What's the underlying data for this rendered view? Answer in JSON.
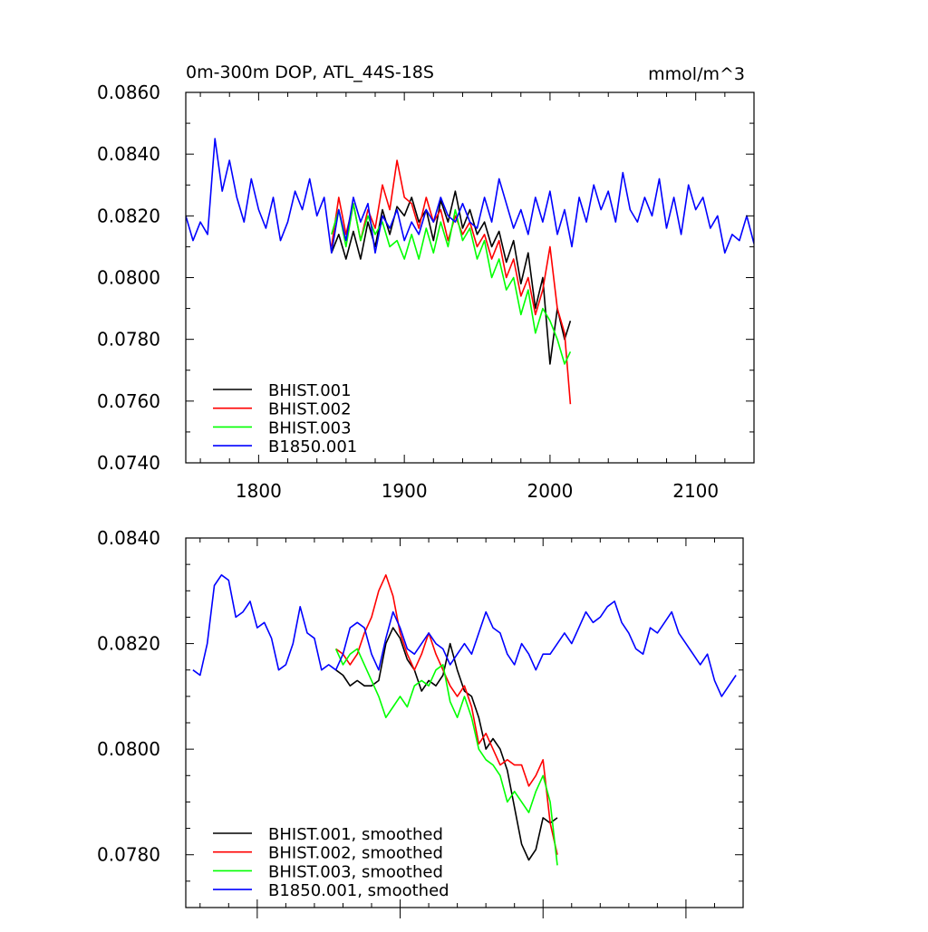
{
  "chart_data": [
    {
      "type": "line",
      "title": "0m-300m DOP, ATL_44S-18S",
      "title_right": "mmol/m^3",
      "xlabel": "",
      "ylabel": "",
      "xlim": [
        1750,
        2140
      ],
      "ylim": [
        0.074,
        0.086
      ],
      "xticks": [
        1800,
        1900,
        2000,
        2100
      ],
      "xtick_labels": [
        "1800",
        "1900",
        "2000",
        "2100"
      ],
      "yticks": [
        0.074,
        0.076,
        0.078,
        0.08,
        0.082,
        0.084,
        0.086
      ],
      "ytick_labels": [
        "0.0740",
        "0.0760",
        "0.0780",
        "0.0800",
        "0.0820",
        "0.0840",
        "0.0860"
      ],
      "grid": false,
      "legend": "bottom-left",
      "series": [
        {
          "name": "BHIST.001",
          "color": "#000000",
          "x": [
            1850,
            1855,
            1860,
            1865,
            1870,
            1875,
            1880,
            1885,
            1890,
            1895,
            1900,
            1905,
            1910,
            1915,
            1920,
            1925,
            1930,
            1935,
            1940,
            1945,
            1950,
            1955,
            1960,
            1965,
            1970,
            1975,
            1980,
            1985,
            1990,
            1995,
            2000,
            2005,
            2010,
            2014
          ],
          "y": [
            0.0808,
            0.0814,
            0.0806,
            0.0815,
            0.0806,
            0.0818,
            0.081,
            0.0822,
            0.0814,
            0.0823,
            0.082,
            0.0826,
            0.0818,
            0.0822,
            0.0812,
            0.0825,
            0.0818,
            0.0828,
            0.0816,
            0.0822,
            0.0814,
            0.0818,
            0.081,
            0.0815,
            0.0805,
            0.0812,
            0.0798,
            0.0808,
            0.079,
            0.08,
            0.0772,
            0.079,
            0.078,
            0.0786
          ]
        },
        {
          "name": "BHIST.002",
          "color": "#ff0000",
          "x": [
            1850,
            1855,
            1860,
            1865,
            1870,
            1875,
            1880,
            1885,
            1890,
            1895,
            1900,
            1905,
            1910,
            1915,
            1920,
            1925,
            1930,
            1935,
            1940,
            1945,
            1950,
            1955,
            1960,
            1965,
            1970,
            1975,
            1980,
            1985,
            1990,
            1995,
            2000,
            2005,
            2010,
            2014
          ],
          "y": [
            0.081,
            0.0826,
            0.0814,
            0.0824,
            0.0812,
            0.0822,
            0.0816,
            0.083,
            0.0822,
            0.0838,
            0.0826,
            0.0824,
            0.0816,
            0.0826,
            0.0818,
            0.0822,
            0.0812,
            0.082,
            0.0814,
            0.0818,
            0.081,
            0.0814,
            0.0806,
            0.0812,
            0.08,
            0.0806,
            0.0794,
            0.08,
            0.0788,
            0.0796,
            0.081,
            0.079,
            0.0782,
            0.0759
          ]
        },
        {
          "name": "BHIST.003",
          "color": "#00ff00",
          "x": [
            1850,
            1855,
            1860,
            1865,
            1870,
            1875,
            1880,
            1885,
            1890,
            1895,
            1900,
            1905,
            1910,
            1915,
            1920,
            1925,
            1930,
            1935,
            1940,
            1945,
            1950,
            1955,
            1960,
            1965,
            1970,
            1975,
            1980,
            1985,
            1990,
            1995,
            2000,
            2005,
            2010,
            2014
          ],
          "y": [
            0.0814,
            0.0822,
            0.081,
            0.0824,
            0.0812,
            0.082,
            0.0814,
            0.0818,
            0.081,
            0.0812,
            0.0806,
            0.0814,
            0.0806,
            0.0816,
            0.0808,
            0.0818,
            0.081,
            0.0822,
            0.0812,
            0.0816,
            0.0806,
            0.0812,
            0.08,
            0.0806,
            0.0796,
            0.08,
            0.0788,
            0.0796,
            0.0782,
            0.079,
            0.0786,
            0.078,
            0.0772,
            0.0776
          ]
        },
        {
          "name": "B1850.001",
          "color": "#0000ff",
          "x": [
            1750,
            1755,
            1760,
            1765,
            1770,
            1775,
            1780,
            1785,
            1790,
            1795,
            1800,
            1805,
            1810,
            1815,
            1820,
            1825,
            1830,
            1835,
            1840,
            1845,
            1850,
            1855,
            1860,
            1865,
            1870,
            1875,
            1880,
            1885,
            1890,
            1895,
            1900,
            1905,
            1910,
            1915,
            1920,
            1925,
            1930,
            1935,
            1940,
            1945,
            1950,
            1955,
            1960,
            1965,
            1970,
            1975,
            1980,
            1985,
            1990,
            1995,
            2000,
            2005,
            2010,
            2015,
            2020,
            2025,
            2030,
            2035,
            2040,
            2045,
            2050,
            2055,
            2060,
            2065,
            2070,
            2075,
            2080,
            2085,
            2090,
            2095,
            2100,
            2105,
            2110,
            2115,
            2120,
            2125,
            2130,
            2135,
            2140
          ],
          "y": [
            0.082,
            0.0812,
            0.0818,
            0.0814,
            0.0845,
            0.0828,
            0.0838,
            0.0826,
            0.0818,
            0.0832,
            0.0822,
            0.0816,
            0.0826,
            0.0812,
            0.0818,
            0.0828,
            0.0822,
            0.0832,
            0.082,
            0.0826,
            0.0808,
            0.0822,
            0.0812,
            0.0826,
            0.0818,
            0.0824,
            0.0808,
            0.082,
            0.0816,
            0.0822,
            0.0812,
            0.0818,
            0.0814,
            0.0822,
            0.0818,
            0.0826,
            0.082,
            0.0818,
            0.0824,
            0.0818,
            0.0816,
            0.0826,
            0.0818,
            0.0832,
            0.0824,
            0.0816,
            0.0822,
            0.0814,
            0.0826,
            0.0818,
            0.0828,
            0.0814,
            0.0822,
            0.081,
            0.0826,
            0.0818,
            0.083,
            0.0822,
            0.0828,
            0.0818,
            0.0834,
            0.0822,
            0.0818,
            0.0826,
            0.082,
            0.0832,
            0.0816,
            0.0826,
            0.0814,
            0.083,
            0.0822,
            0.0826,
            0.0816,
            0.082,
            0.0808,
            0.0814,
            0.0812,
            0.082,
            0.0811
          ]
        }
      ]
    },
    {
      "type": "line",
      "title": "",
      "xlabel": "",
      "ylabel": "",
      "xlim": [
        1750,
        2140
      ],
      "ylim": [
        0.077,
        0.084
      ],
      "xticks": [
        1800,
        1900,
        2000,
        2100
      ],
      "xtick_labels": [],
      "yticks": [
        0.078,
        0.08,
        0.082,
        0.084
      ],
      "ytick_labels": [
        "0.0780",
        "0.0800",
        "0.0820",
        "0.0840"
      ],
      "grid": false,
      "legend": "bottom-left",
      "series": [
        {
          "name": "BHIST.001, smoothed",
          "color": "#000000",
          "x": [
            1855,
            1860,
            1865,
            1870,
            1875,
            1880,
            1885,
            1890,
            1895,
            1900,
            1905,
            1910,
            1915,
            1920,
            1925,
            1930,
            1935,
            1940,
            1945,
            1950,
            1955,
            1960,
            1965,
            1970,
            1975,
            1980,
            1985,
            1990,
            1995,
            2000,
            2005,
            2010
          ],
          "y": [
            0.0815,
            0.0814,
            0.0812,
            0.0813,
            0.0812,
            0.0812,
            0.0813,
            0.082,
            0.0823,
            0.0821,
            0.0817,
            0.0815,
            0.0811,
            0.0813,
            0.0812,
            0.0814,
            0.082,
            0.0815,
            0.0811,
            0.081,
            0.0806,
            0.08,
            0.0802,
            0.08,
            0.0796,
            0.0789,
            0.0782,
            0.0779,
            0.0781,
            0.0787,
            0.0786,
            0.0787
          ]
        },
        {
          "name": "BHIST.002, smoothed",
          "color": "#ff0000",
          "x": [
            1855,
            1860,
            1865,
            1870,
            1875,
            1880,
            1885,
            1890,
            1895,
            1900,
            1905,
            1910,
            1915,
            1920,
            1925,
            1930,
            1935,
            1940,
            1945,
            1950,
            1955,
            1960,
            1965,
            1970,
            1975,
            1980,
            1985,
            1990,
            1995,
            2000,
            2005,
            2010
          ],
          "y": [
            0.0819,
            0.0818,
            0.0816,
            0.0818,
            0.0822,
            0.0825,
            0.083,
            0.0833,
            0.0829,
            0.0822,
            0.0818,
            0.0815,
            0.0818,
            0.0822,
            0.0818,
            0.0815,
            0.0812,
            0.081,
            0.0812,
            0.0808,
            0.0801,
            0.0803,
            0.08,
            0.0797,
            0.0798,
            0.0797,
            0.0797,
            0.0793,
            0.0795,
            0.0798,
            0.0786,
            0.078
          ]
        },
        {
          "name": "BHIST.003, smoothed",
          "color": "#00ff00",
          "x": [
            1855,
            1860,
            1865,
            1870,
            1875,
            1880,
            1885,
            1890,
            1895,
            1900,
            1905,
            1910,
            1915,
            1920,
            1925,
            1930,
            1935,
            1940,
            1945,
            1950,
            1955,
            1960,
            1965,
            1970,
            1975,
            1980,
            1985,
            1990,
            1995,
            2000,
            2005,
            2010
          ],
          "y": [
            0.0819,
            0.0816,
            0.0818,
            0.0819,
            0.0816,
            0.0813,
            0.081,
            0.0806,
            0.0808,
            0.081,
            0.0808,
            0.0812,
            0.0813,
            0.0812,
            0.0815,
            0.0816,
            0.0809,
            0.0806,
            0.081,
            0.0806,
            0.08,
            0.0798,
            0.0797,
            0.0795,
            0.079,
            0.0792,
            0.079,
            0.0788,
            0.0792,
            0.0795,
            0.079,
            0.0778
          ]
        },
        {
          "name": "B1850.001, smoothed",
          "color": "#0000ff",
          "x": [
            1755,
            1760,
            1765,
            1770,
            1775,
            1780,
            1785,
            1790,
            1795,
            1800,
            1805,
            1810,
            1815,
            1820,
            1825,
            1830,
            1835,
            1840,
            1845,
            1850,
            1855,
            1860,
            1865,
            1870,
            1875,
            1880,
            1885,
            1890,
            1895,
            1900,
            1905,
            1910,
            1915,
            1920,
            1925,
            1930,
            1935,
            1940,
            1945,
            1950,
            1955,
            1960,
            1965,
            1970,
            1975,
            1980,
            1985,
            1990,
            1995,
            2000,
            2005,
            2010,
            2015,
            2020,
            2025,
            2030,
            2035,
            2040,
            2045,
            2050,
            2055,
            2060,
            2065,
            2070,
            2075,
            2080,
            2085,
            2090,
            2095,
            2100,
            2105,
            2110,
            2115,
            2120,
            2125,
            2130,
            2135
          ],
          "y": [
            0.0815,
            0.0814,
            0.082,
            0.0831,
            0.0833,
            0.0832,
            0.0825,
            0.0826,
            0.0828,
            0.0823,
            0.0824,
            0.0821,
            0.0815,
            0.0816,
            0.082,
            0.0827,
            0.0822,
            0.0821,
            0.0815,
            0.0816,
            0.0815,
            0.0818,
            0.0823,
            0.0824,
            0.0823,
            0.0818,
            0.0815,
            0.0821,
            0.0826,
            0.0823,
            0.0819,
            0.0818,
            0.082,
            0.0822,
            0.082,
            0.0819,
            0.0816,
            0.0818,
            0.082,
            0.0818,
            0.0822,
            0.0826,
            0.0823,
            0.0822,
            0.0818,
            0.0816,
            0.082,
            0.0818,
            0.0815,
            0.0818,
            0.0818,
            0.082,
            0.0822,
            0.082,
            0.0823,
            0.0826,
            0.0824,
            0.0825,
            0.0827,
            0.0828,
            0.0824,
            0.0822,
            0.0819,
            0.0818,
            0.0823,
            0.0822,
            0.0824,
            0.0826,
            0.0822,
            0.082,
            0.0818,
            0.0816,
            0.0818,
            0.0813,
            0.081,
            0.0812,
            0.0814
          ]
        }
      ]
    }
  ]
}
